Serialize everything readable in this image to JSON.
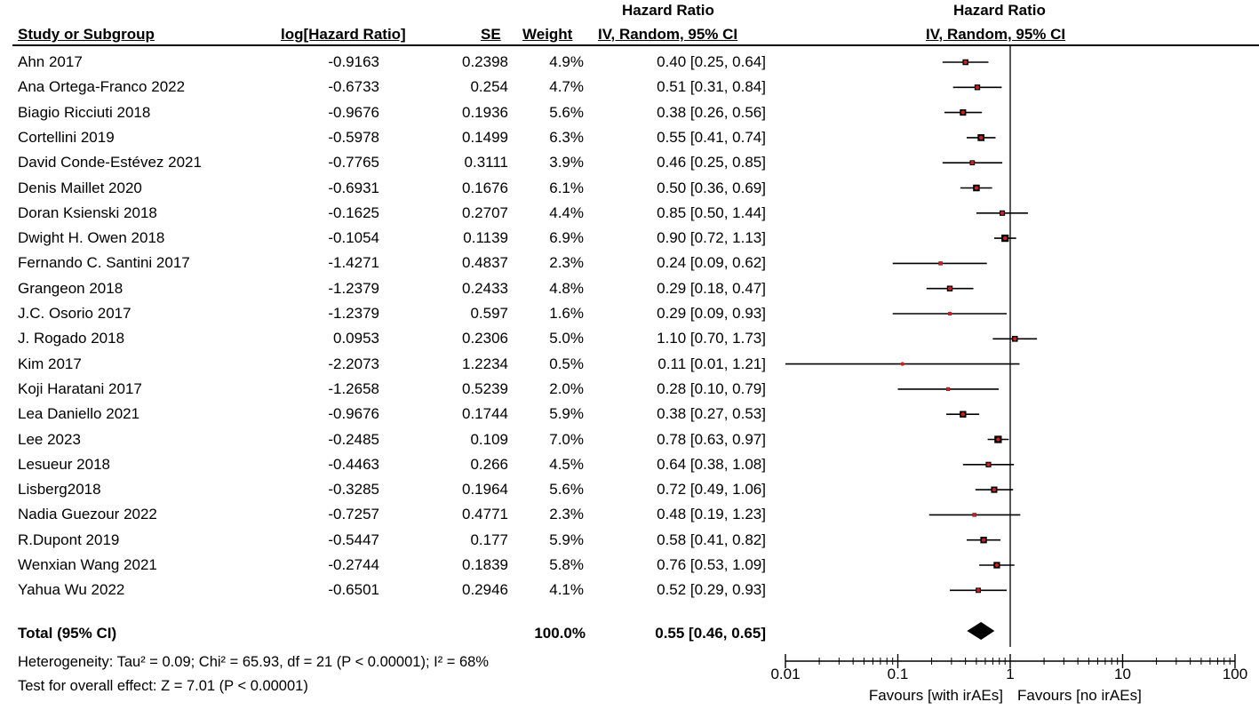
{
  "header": {
    "study": "Study or Subgroup",
    "log_hr": "log[Hazard Ratio]",
    "se": "SE",
    "weight": "Weight",
    "hr_top": "Hazard Ratio",
    "hr_sub": "IV, Random, 95% CI",
    "plot_top": "Hazard Ratio",
    "plot_sub": "IV, Random, 95% CI"
  },
  "total": {
    "label": "Total (95% CI)",
    "weight": "100.0%",
    "ci": "0.55 [0.46, 0.65]"
  },
  "stats": {
    "heterogeneity": "Heterogeneity: Tau² = 0.09; Chi² = 65.93, df = 21 (P < 0.00001); I² = 68%",
    "overall": "Test for overall effect: Z = 7.01 (P < 0.00001)"
  },
  "colors": {
    "point": "#cc1f1f",
    "line": "#000000"
  },
  "chart_data": {
    "type": "forest",
    "title": "Hazard Ratio",
    "subtitle": "IV, Random, 95% CI",
    "xscale": "log",
    "xlim": [
      0.01,
      100
    ],
    "ticks": [
      0.01,
      0.1,
      1,
      10,
      100
    ],
    "tick_labels": [
      "0.01",
      "0.1",
      "1",
      "10",
      "100"
    ],
    "xlabel_left": "Favours [with irAEs]",
    "xlabel_right": "Favours [no irAEs]",
    "studies": [
      {
        "name": "Ahn 2017",
        "log_hr": "-0.9163",
        "se": "0.2398",
        "weight": "4.9%",
        "ci": "0.40 [0.25, 0.64]",
        "hr": 0.4,
        "lo": 0.25,
        "hi": 0.64,
        "w": 4.9
      },
      {
        "name": "Ana Ortega-Franco 2022",
        "log_hr": "-0.6733",
        "se": "0.254",
        "weight": "4.7%",
        "ci": "0.51 [0.31, 0.84]",
        "hr": 0.51,
        "lo": 0.31,
        "hi": 0.84,
        "w": 4.7
      },
      {
        "name": "Biagio Ricciuti 2018",
        "log_hr": "-0.9676",
        "se": "0.1936",
        "weight": "5.6%",
        "ci": "0.38 [0.26, 0.56]",
        "hr": 0.38,
        "lo": 0.26,
        "hi": 0.56,
        "w": 5.6
      },
      {
        "name": "Cortellini 2019",
        "log_hr": "-0.5978",
        "se": "0.1499",
        "weight": "6.3%",
        "ci": "0.55 [0.41, 0.74]",
        "hr": 0.55,
        "lo": 0.41,
        "hi": 0.74,
        "w": 6.3
      },
      {
        "name": "David Conde-Estévez 2021",
        "log_hr": "-0.7765",
        "se": "0.3111",
        "weight": "3.9%",
        "ci": "0.46 [0.25, 0.85]",
        "hr": 0.46,
        "lo": 0.25,
        "hi": 0.85,
        "w": 3.9
      },
      {
        "name": "Denis Maillet 2020",
        "log_hr": "-0.6931",
        "se": "0.1676",
        "weight": "6.1%",
        "ci": "0.50 [0.36, 0.69]",
        "hr": 0.5,
        "lo": 0.36,
        "hi": 0.69,
        "w": 6.1
      },
      {
        "name": "Doran Ksienski 2018",
        "log_hr": "-0.1625",
        "se": "0.2707",
        "weight": "4.4%",
        "ci": "0.85 [0.50, 1.44]",
        "hr": 0.85,
        "lo": 0.5,
        "hi": 1.44,
        "w": 4.4
      },
      {
        "name": "Dwight H. Owen 2018",
        "log_hr": "-0.1054",
        "se": "0.1139",
        "weight": "6.9%",
        "ci": "0.90 [0.72, 1.13]",
        "hr": 0.9,
        "lo": 0.72,
        "hi": 1.13,
        "w": 6.9
      },
      {
        "name": "Fernando C. Santini 2017",
        "log_hr": "-1.4271",
        "se": "0.4837",
        "weight": "2.3%",
        "ci": "0.24 [0.09, 0.62]",
        "hr": 0.24,
        "lo": 0.09,
        "hi": 0.62,
        "w": 2.3
      },
      {
        "name": "Grangeon 2018",
        "log_hr": "-1.2379",
        "se": "0.2433",
        "weight": "4.8%",
        "ci": "0.29 [0.18, 0.47]",
        "hr": 0.29,
        "lo": 0.18,
        "hi": 0.47,
        "w": 4.8
      },
      {
        "name": "J.C. Osorio 2017",
        "log_hr": "-1.2379",
        "se": "0.597",
        "weight": "1.6%",
        "ci": "0.29 [0.09, 0.93]",
        "hr": 0.29,
        "lo": 0.09,
        "hi": 0.93,
        "w": 1.6
      },
      {
        "name": "J. Rogado 2018",
        "log_hr": "0.0953",
        "se": "0.2306",
        "weight": "5.0%",
        "ci": "1.10 [0.70, 1.73]",
        "hr": 1.1,
        "lo": 0.7,
        "hi": 1.73,
        "w": 5.0
      },
      {
        "name": "Kim 2017",
        "log_hr": "-2.2073",
        "se": "1.2234",
        "weight": "0.5%",
        "ci": "0.11 [0.01, 1.21]",
        "hr": 0.11,
        "lo": 0.01,
        "hi": 1.21,
        "w": 0.5
      },
      {
        "name": "Koji Haratani 2017",
        "log_hr": "-1.2658",
        "se": "0.5239",
        "weight": "2.0%",
        "ci": "0.28 [0.10, 0.79]",
        "hr": 0.28,
        "lo": 0.1,
        "hi": 0.79,
        "w": 2.0
      },
      {
        "name": "Lea Daniello 2021",
        "log_hr": "-0.9676",
        "se": "0.1744",
        "weight": "5.9%",
        "ci": "0.38 [0.27, 0.53]",
        "hr": 0.38,
        "lo": 0.27,
        "hi": 0.53,
        "w": 5.9
      },
      {
        "name": "Lee 2023",
        "log_hr": "-0.2485",
        "se": "0.109",
        "weight": "7.0%",
        "ci": "0.78 [0.63, 0.97]",
        "hr": 0.78,
        "lo": 0.63,
        "hi": 0.97,
        "w": 7.0
      },
      {
        "name": "Lesueur 2018",
        "log_hr": "-0.4463",
        "se": "0.266",
        "weight": "4.5%",
        "ci": "0.64 [0.38, 1.08]",
        "hr": 0.64,
        "lo": 0.38,
        "hi": 1.08,
        "w": 4.5
      },
      {
        "name": "Lisberg2018",
        "log_hr": "-0.3285",
        "se": "0.1964",
        "weight": "5.6%",
        "ci": "0.72 [0.49, 1.06]",
        "hr": 0.72,
        "lo": 0.49,
        "hi": 1.06,
        "w": 5.6
      },
      {
        "name": "Nadia Guezour 2022",
        "log_hr": "-0.7257",
        "se": "0.4771",
        "weight": "2.3%",
        "ci": "0.48 [0.19, 1.23]",
        "hr": 0.48,
        "lo": 0.19,
        "hi": 1.23,
        "w": 2.3
      },
      {
        "name": "R.Dupont 2019",
        "log_hr": "-0.5447",
        "se": "0.177",
        "weight": "5.9%",
        "ci": "0.58 [0.41, 0.82]",
        "hr": 0.58,
        "lo": 0.41,
        "hi": 0.82,
        "w": 5.9
      },
      {
        "name": "Wenxian Wang 2021",
        "log_hr": "-0.2744",
        "se": "0.1839",
        "weight": "5.8%",
        "ci": "0.76 [0.53, 1.09]",
        "hr": 0.76,
        "lo": 0.53,
        "hi": 1.09,
        "w": 5.8
      },
      {
        "name": "Yahua Wu 2022",
        "log_hr": "-0.6501",
        "se": "0.2946",
        "weight": "4.1%",
        "ci": "0.52 [0.29, 0.93]",
        "hr": 0.52,
        "lo": 0.29,
        "hi": 0.93,
        "w": 4.1
      }
    ],
    "overall": {
      "hr": 0.55,
      "lo": 0.46,
      "hi": 0.65
    }
  }
}
